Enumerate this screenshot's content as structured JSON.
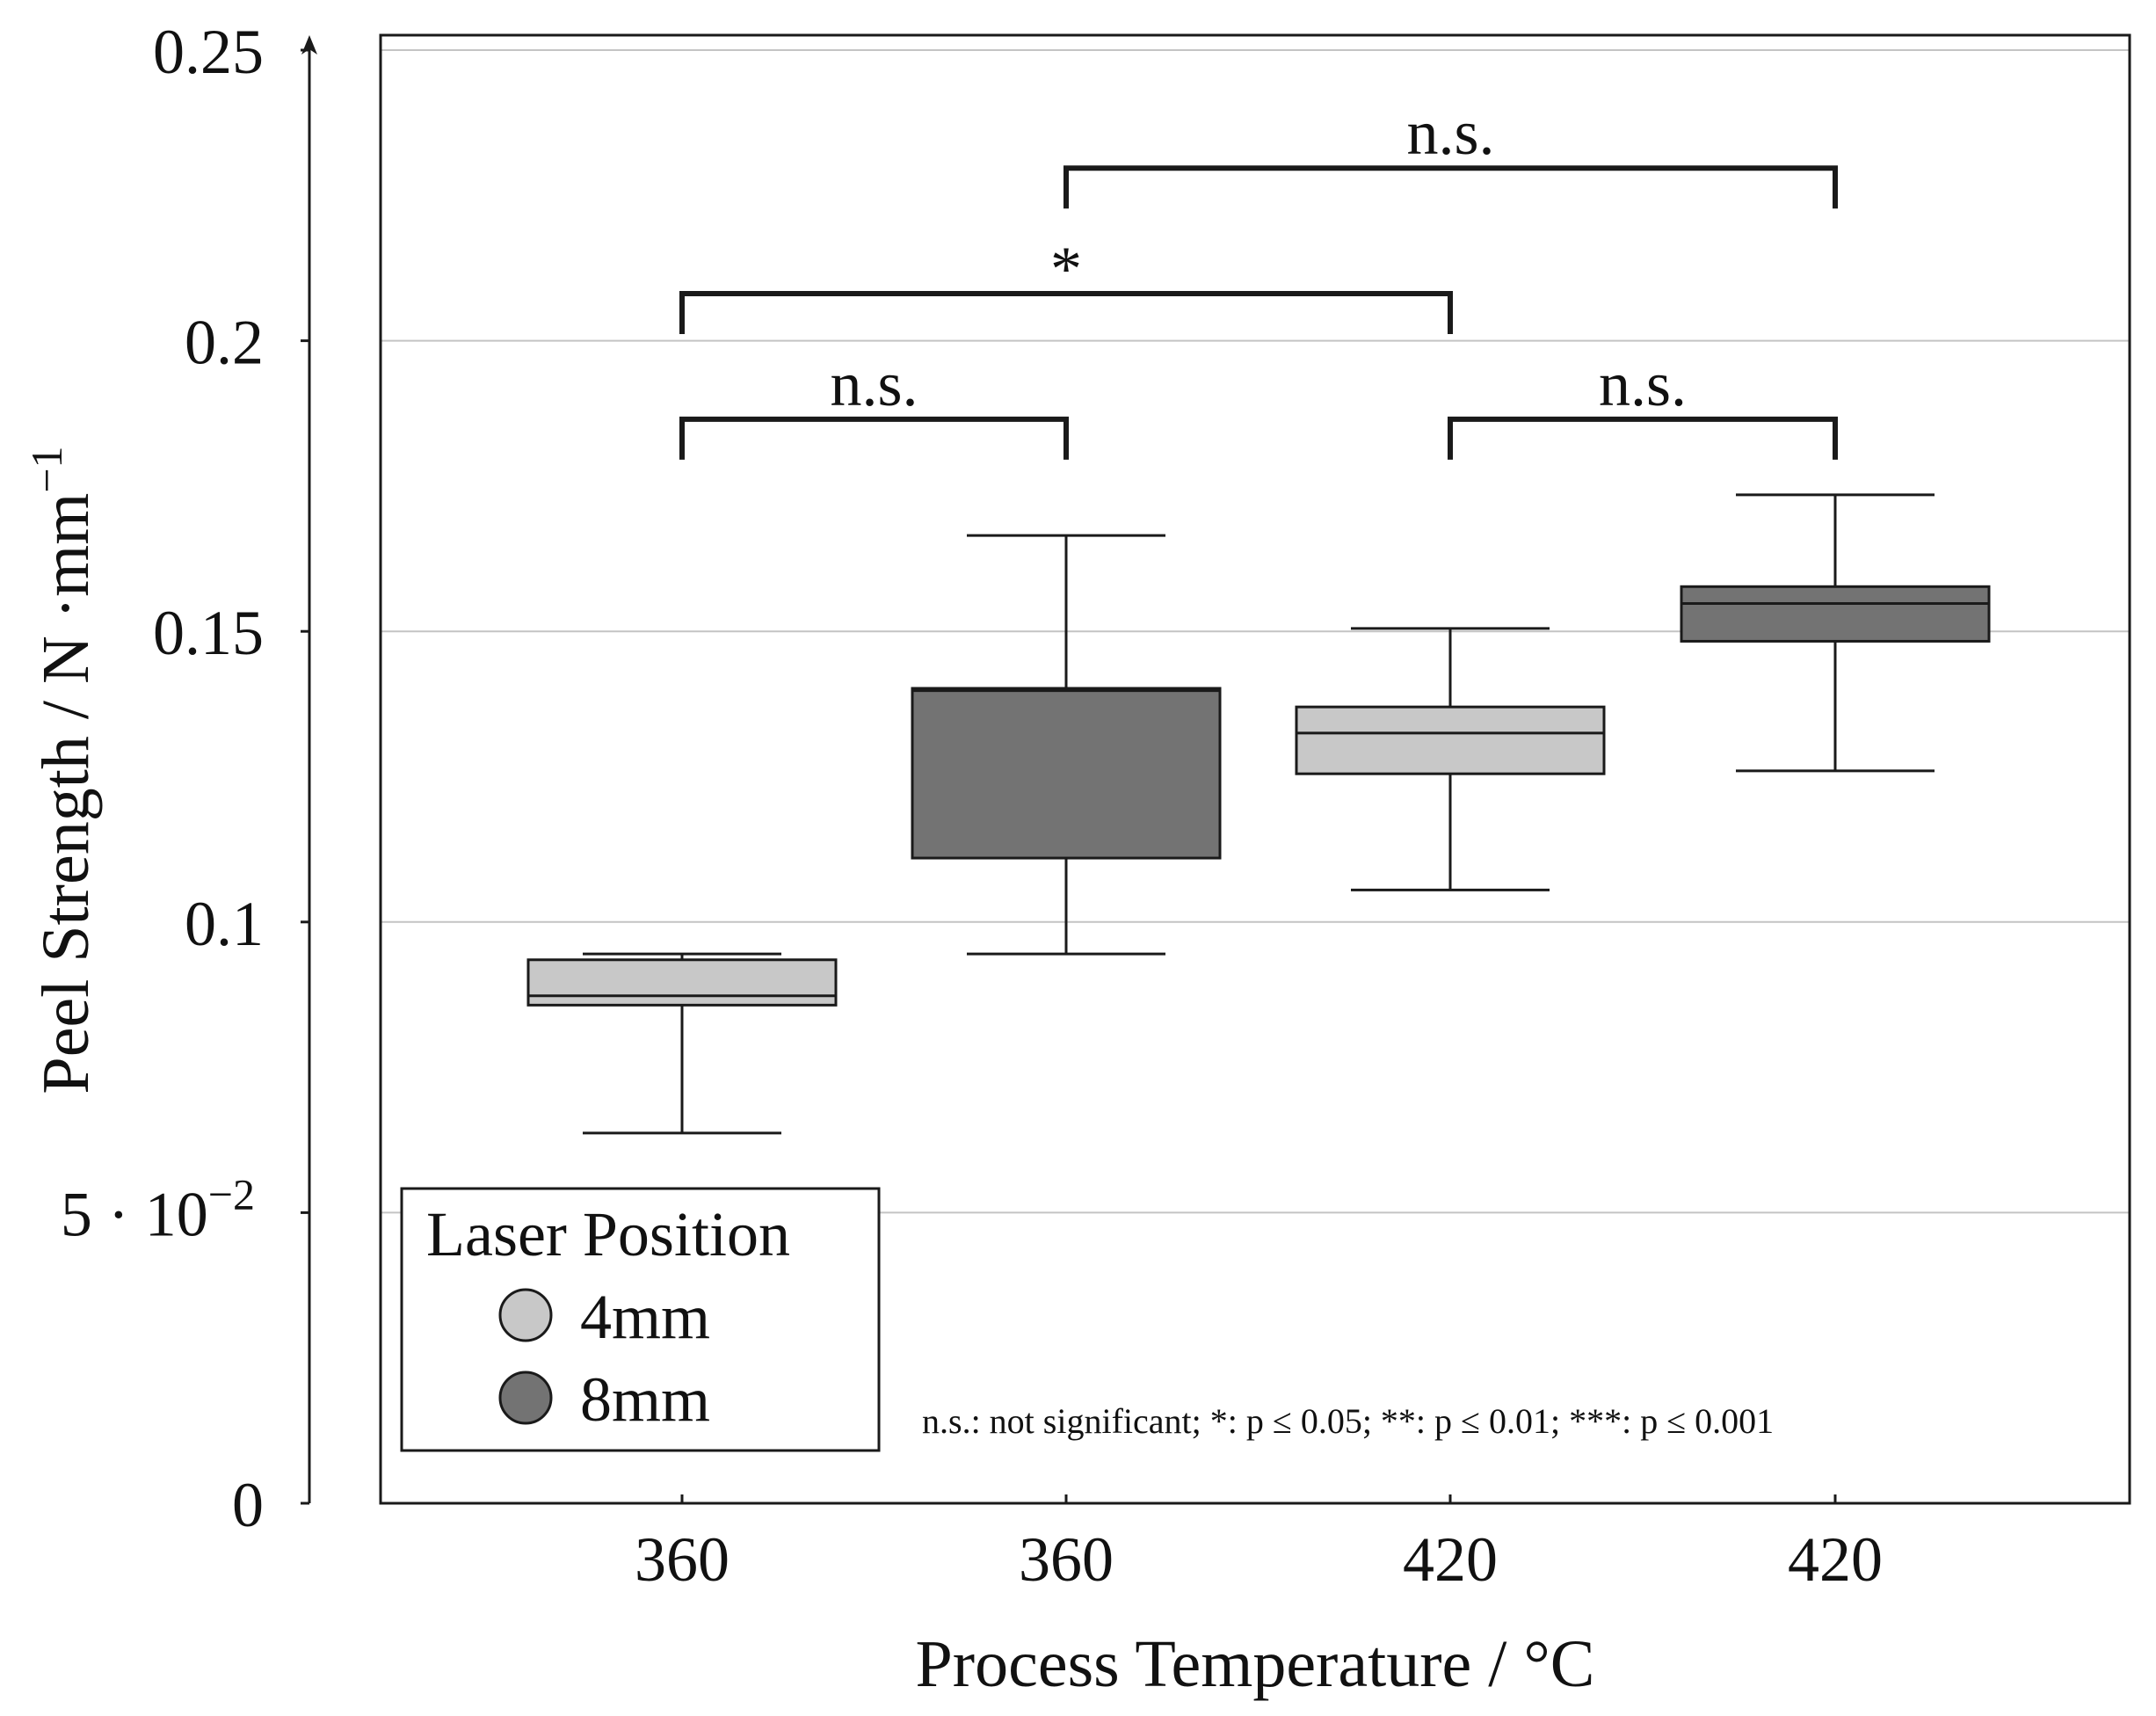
{
  "chart_data": {
    "type": "box",
    "title": "",
    "xlabel": "Process Temperature / °C",
    "ylabel_main": "Peel Strength / N ·mm",
    "ylabel_sup": "−1",
    "ylim": [
      0,
      0.25
    ],
    "y_ticks": [
      {
        "value": 0,
        "label": "0"
      },
      {
        "value": 0.05,
        "label": "5 · 10"
      },
      {
        "value": 0.1,
        "label": "0.1"
      },
      {
        "value": 0.15,
        "label": "0.15"
      },
      {
        "value": 0.2,
        "label": "0.2"
      },
      {
        "value": 0.25,
        "label": "0.25"
      }
    ],
    "y_tick_sup": "−2",
    "grid": true,
    "categories": [
      "360",
      "360",
      "420",
      "420"
    ],
    "boxes": [
      {
        "category": "360",
        "series": "4mm",
        "whisker_low": 0.0637,
        "q1": 0.0857,
        "median": 0.0873,
        "q3": 0.0935,
        "whisker_high": 0.0945
      },
      {
        "category": "360",
        "series": "8mm",
        "whisker_low": 0.0945,
        "q1": 0.111,
        "median": 0.1398,
        "q3": 0.1402,
        "whisker_high": 0.1665
      },
      {
        "category": "420",
        "series": "4mm",
        "whisker_low": 0.1055,
        "q1": 0.1255,
        "median": 0.1325,
        "q3": 0.137,
        "whisker_high": 0.1505
      },
      {
        "category": "420",
        "series": "8mm",
        "whisker_low": 0.126,
        "q1": 0.1483,
        "median": 0.1548,
        "q3": 0.1577,
        "whisker_high": 0.1735
      }
    ],
    "legend": {
      "title": "Laser Position",
      "placement": "bottom-left",
      "entries": [
        {
          "label": "4mm",
          "color": "#c8c8c8"
        },
        {
          "label": "8mm",
          "color": "#737373"
        }
      ]
    },
    "significance": [
      {
        "from": 0,
        "to": 1,
        "label": "n.s.",
        "level": 0.1865
      },
      {
        "from": 2,
        "to": 3,
        "label": "n.s.",
        "level": 0.1865
      },
      {
        "from": 0,
        "to": 2,
        "label": "*",
        "level": 0.2081
      },
      {
        "from": 1,
        "to": 3,
        "label": "n.s.",
        "level": 0.2297
      }
    ],
    "footnote": "n.s.: not significant; *: p ≤ 0.05; **: p ≤ 0.01; ***: p ≤ 0.001"
  },
  "colors": {
    "box_4mm": "#c8c8c8",
    "box_8mm": "#737373",
    "grid": "#c4c4c4",
    "axis": "#1a1a1a"
  }
}
